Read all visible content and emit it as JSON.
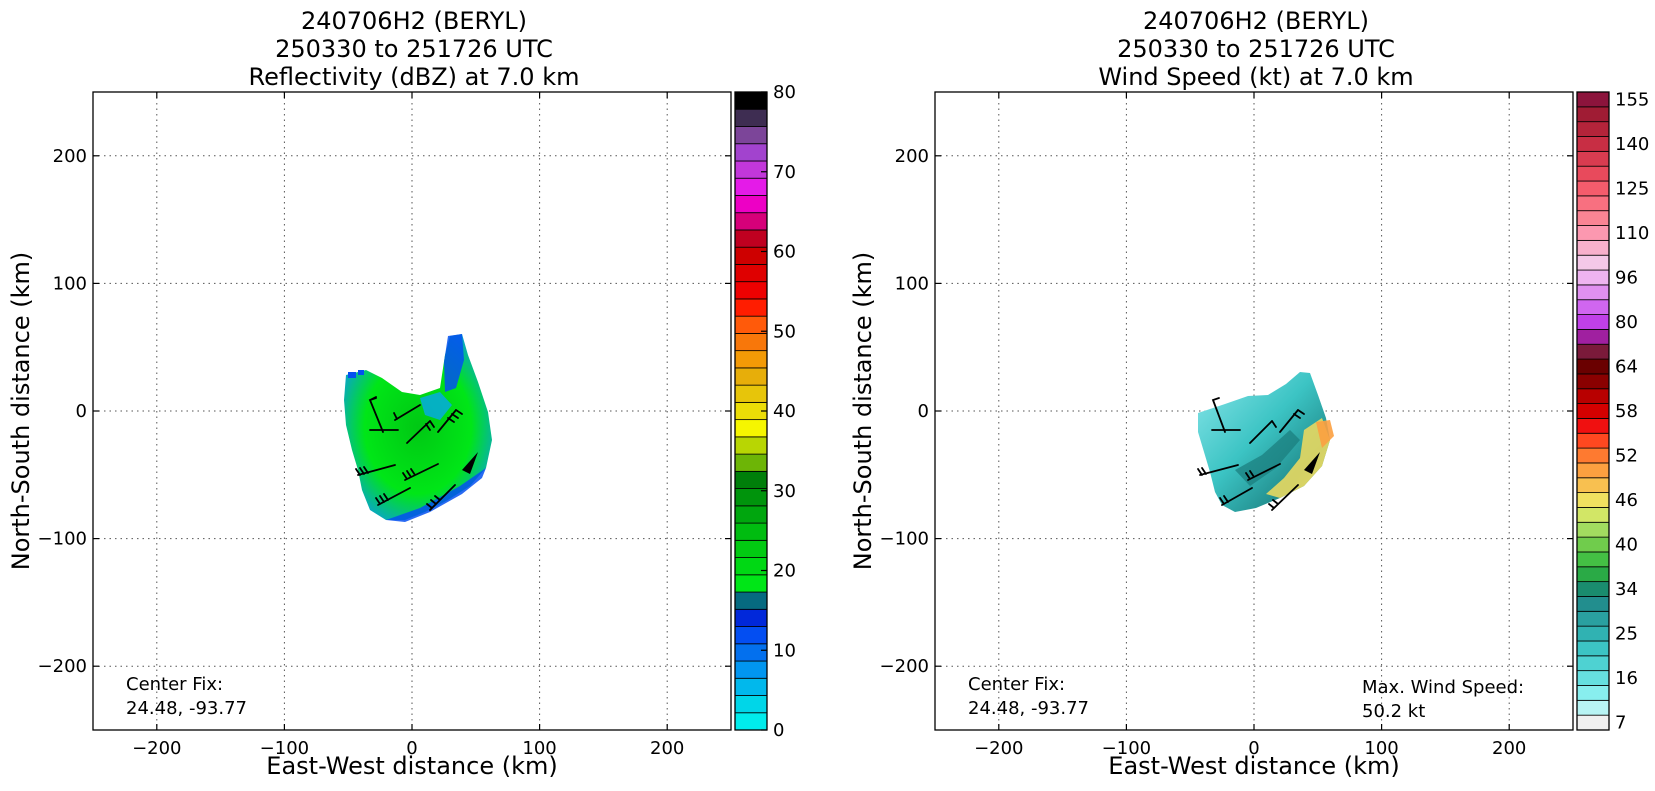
{
  "chart_data": [
    {
      "id": "reflectivity",
      "type": "heatmap",
      "title_lines": [
        "240706H2 (BERYL)",
        "250330 to 251726 UTC",
        "Reflectivity (dBZ) at 7.0 km"
      ],
      "xlabel": "East-West distance (km)",
      "ylabel": "North-South distance (km)",
      "xlim": [
        -250,
        250
      ],
      "ylim": [
        -250,
        250
      ],
      "xticks": [
        -200,
        -100,
        0,
        100,
        200
      ],
      "yticks": [
        -200,
        -100,
        0,
        100,
        200
      ],
      "tick_labels": [
        "−200",
        "−100",
        "0",
        "100",
        "200"
      ],
      "grid": true,
      "annotations": [
        {
          "text": "Center Fix:",
          "position": "bottom-left"
        },
        {
          "text": "24.48, -93.77",
          "position": "bottom-left"
        }
      ],
      "colorbar": {
        "min": 0,
        "max": 80,
        "ticks": [
          0,
          10,
          20,
          30,
          40,
          50,
          60,
          70,
          80
        ],
        "colors": [
          "#00ecec",
          "#00d6e8",
          "#01b8ec",
          "#0196f0",
          "#0370ee",
          "#034ef2",
          "#0128da",
          "#066a80",
          "#00e617",
          "#00d814",
          "#02ca12",
          "#00bc10",
          "#00a60e",
          "#00940c",
          "#007f0a",
          "#6db506",
          "#b8d603",
          "#f6f600",
          "#ecdd07",
          "#e7c50a",
          "#e7ae0a",
          "#f39a06",
          "#f8770a",
          "#ff5a0a",
          "#ff1d00",
          "#ee0101",
          "#df0000",
          "#ce0000",
          "#bf0020",
          "#d6007a",
          "#ed00c5",
          "#e41be8",
          "#c237da",
          "#a243ce",
          "#7c4599",
          "#3e2d52",
          "#000000"
        ]
      },
      "field_description": "radar echo region roughly x -55..65 km, y -88..60 km; values mostly 15-30 dBZ with lower values (5-15) in northeast arm and southern edge"
    },
    {
      "id": "windspeed",
      "type": "heatmap",
      "title_lines": [
        "240706H2 (BERYL)",
        "250330 to 251726 UTC",
        "Wind Speed (kt) at 7.0 km"
      ],
      "xlabel": "East-West distance (km)",
      "ylabel": "North-South distance (km)",
      "xlim": [
        -250,
        250
      ],
      "ylim": [
        -250,
        250
      ],
      "xticks": [
        -200,
        -100,
        0,
        100,
        200
      ],
      "yticks": [
        -200,
        -100,
        0,
        100,
        200
      ],
      "tick_labels": [
        "−200",
        "−100",
        "0",
        "100",
        "200"
      ],
      "grid": true,
      "annotations": [
        {
          "text": "Center Fix:",
          "position": "bottom-left"
        },
        {
          "text": "24.48, -93.77",
          "position": "bottom-left"
        },
        {
          "text": "Max. Wind Speed:",
          "position": "bottom-right"
        },
        {
          "text": "50.2 kt",
          "position": "bottom-right"
        }
      ],
      "colorbar": {
        "ticks": [
          "7",
          "16",
          "25",
          "34",
          "40",
          "46",
          "52",
          "58",
          "64",
          "80",
          "96",
          "110",
          "125",
          "140",
          "155"
        ],
        "colors": [
          "#f0f0f0",
          "#b8f4f4",
          "#88eeee",
          "#66e0e0",
          "#4ed2d2",
          "#3cc4c4",
          "#30b2b2",
          "#2aa0a0",
          "#228e8e",
          "#1a8c6e",
          "#2aaa46",
          "#44c044",
          "#70cc4c",
          "#a2dc60",
          "#d2e666",
          "#f0e060",
          "#f8c050",
          "#fca040",
          "#fe7a30",
          "#ff4820",
          "#f01010",
          "#d40000",
          "#b80000",
          "#8a0000",
          "#6a0000",
          "#7a1a3a",
          "#a020a0",
          "#c040e8",
          "#d066f0",
          "#e090f0",
          "#eeb4f0",
          "#f4c8e8",
          "#f8b0cc",
          "#fc98b0",
          "#fa8494",
          "#f87080",
          "#f45c6c",
          "#e84a5c",
          "#d83c50",
          "#c82e44",
          "#b4243a",
          "#a01c34",
          "#8c143c"
        ]
      },
      "max_wind_speed_kt": 50.2,
      "field_description": "wind field mostly 16-34 kt cyan/teal, 40-50 kt yellow-orange along southeast edge"
    }
  ]
}
